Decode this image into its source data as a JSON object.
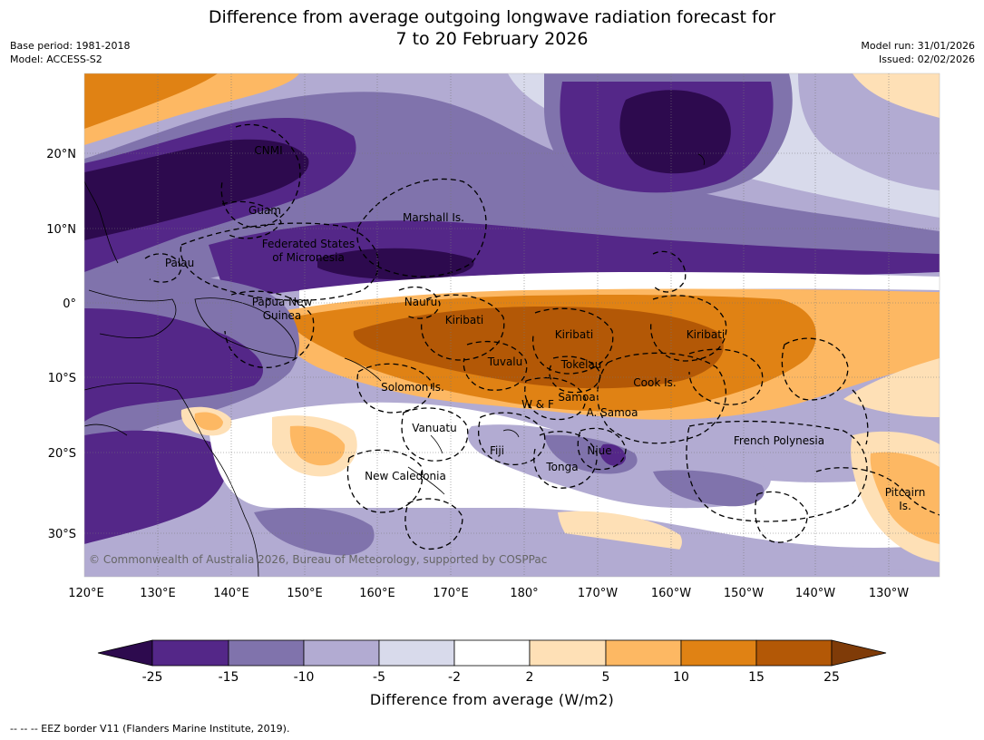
{
  "title": {
    "line1": "Difference from average outgoing longwave radiation forecast for",
    "line2": "7 to 20 February 2026"
  },
  "meta_left": {
    "base_period": "Base period: 1981-2018",
    "model": "Model: ACCESS-S2"
  },
  "meta_right": {
    "model_run": "Model run: 31/01/2026",
    "issued": "Issued: 02/02/2026"
  },
  "map": {
    "lon_labels": [
      "120°E",
      "130°E",
      "140°E",
      "150°E",
      "160°E",
      "170°E",
      "180°",
      "170°W",
      "160°W",
      "150°W",
      "140°W",
      "130°W"
    ],
    "lat_labels": [
      "20°N",
      "10°N",
      "0°",
      "10°S",
      "20°S",
      "30°S"
    ],
    "copyright": "© Commonwealth of Australia 2026, Bureau of Meteorology, supported by COSPPac",
    "places": {
      "cnmi": "CNMI",
      "guam": "Guam",
      "marshall": "Marshall Is.",
      "fsm1": "Federated States",
      "fsm2": "of Micronesia",
      "palau": "Palau",
      "png1": "Papua New",
      "png2": "Guinea",
      "nauru": "Nauru",
      "kiribati_w": "Kiribati",
      "kiribati_c": "Kiribati",
      "kiribati_e": "Kiribati",
      "tuvalu": "Tuvalu",
      "tokelau": "Tokelau",
      "cook": "Cook Is.",
      "solomon": "Solomon Is.",
      "samoa": "Samoa",
      "wf": "W & F",
      "asamoa": "A. Samoa",
      "vanuatu": "Vanuatu",
      "fiji": "Fiji",
      "niue": "Niue",
      "tonga": "Tonga",
      "new_caledonia": "New Caledonia",
      "french_polynesia": "French Polynesia",
      "pitcairn1": "Pitcairn",
      "pitcairn2": "Is."
    }
  },
  "colorbar": {
    "ticks": [
      "-25",
      "-15",
      "-10",
      "-5",
      "-2",
      "2",
      "5",
      "10",
      "15",
      "25"
    ],
    "colors": [
      "#2d0a4e",
      "#542788",
      "#8073ac",
      "#b2abd2",
      "#d8daeb",
      "#ffffff",
      "#fee0b6",
      "#fdb863",
      "#e08214",
      "#b35806",
      "#7f3b08"
    ],
    "title": "Difference from average (W/m2)"
  },
  "footer": "--  --  -- EEZ border V11 (Flanders Marine Institute, 2019)."
}
